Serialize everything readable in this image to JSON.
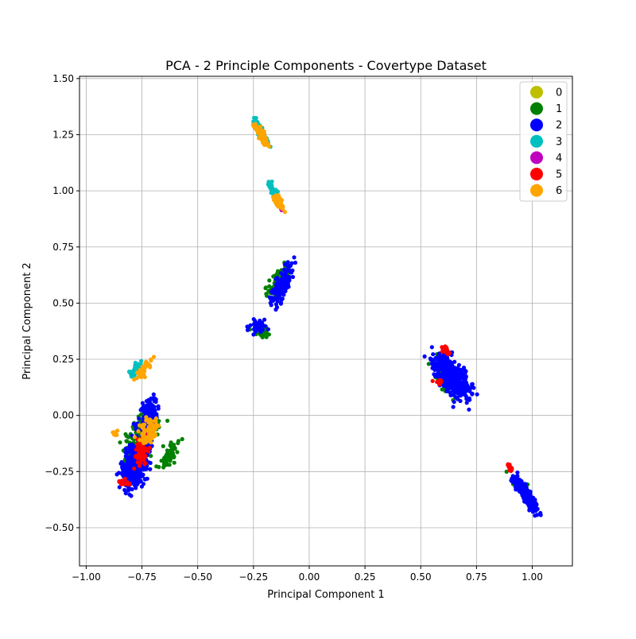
{
  "chart_data": {
    "type": "scatter",
    "title": "PCA - 2 Principle Components - Covertype Dataset",
    "xlabel": "Principal Component 1",
    "ylabel": "Principal Component 2",
    "xlim": [
      -1.03,
      1.18
    ],
    "ylim": [
      -0.67,
      1.51
    ],
    "xticks": [
      -1.0,
      -0.75,
      -0.5,
      -0.25,
      0.0,
      0.25,
      0.5,
      0.75,
      1.0
    ],
    "yticks": [
      -0.5,
      -0.25,
      0.0,
      0.25,
      0.5,
      0.75,
      1.0,
      1.25,
      1.5
    ],
    "xtick_labels": [
      "−1.00",
      "−0.75",
      "−0.50",
      "−0.25",
      "0.00",
      "0.25",
      "0.50",
      "0.75",
      "1.00"
    ],
    "ytick_labels": [
      "−0.50",
      "−0.25",
      "0.00",
      "0.25",
      "0.50",
      "0.75",
      "1.00",
      "1.25",
      "1.50"
    ],
    "grid": true,
    "legend_position": "top-right",
    "series": [
      {
        "name": "0",
        "color": "#bfbf00",
        "clusters": []
      },
      {
        "name": "1",
        "color": "#008000",
        "clusters": [
          {
            "center": [
              -0.75,
              -0.1
            ],
            "spread": [
              0.09,
              0.17
            ],
            "angle_deg": 70,
            "count": 200
          },
          {
            "center": [
              -0.63,
              -0.18
            ],
            "spread": [
              0.04,
              0.1
            ],
            "angle_deg": 60,
            "count": 60
          },
          {
            "center": [
              -0.14,
              0.6
            ],
            "spread": [
              0.05,
              0.13
            ],
            "angle_deg": 65,
            "count": 90
          },
          {
            "center": [
              -0.22,
              0.38
            ],
            "spread": [
              0.05,
              0.05
            ],
            "angle_deg": 0,
            "count": 30
          },
          {
            "center": [
              0.6,
              0.17
            ],
            "spread": [
              0.05,
              0.13
            ],
            "angle_deg": -60,
            "count": 80
          },
          {
            "center": [
              0.96,
              -0.33
            ],
            "spread": [
              0.03,
              0.12
            ],
            "angle_deg": -55,
            "count": 25
          }
        ]
      },
      {
        "name": "2",
        "color": "#0000ff",
        "clusters": [
          {
            "center": [
              -0.78,
              -0.22
            ],
            "spread": [
              0.07,
              0.15
            ],
            "angle_deg": 75,
            "count": 450
          },
          {
            "center": [
              -0.72,
              0.0
            ],
            "spread": [
              0.05,
              0.12
            ],
            "angle_deg": 70,
            "count": 150
          },
          {
            "center": [
              -0.12,
              0.58
            ],
            "spread": [
              0.05,
              0.14
            ],
            "angle_deg": 65,
            "count": 120
          },
          {
            "center": [
              -0.23,
              0.4
            ],
            "spread": [
              0.04,
              0.06
            ],
            "angle_deg": 0,
            "count": 40
          },
          {
            "center": [
              0.64,
              0.17
            ],
            "spread": [
              0.07,
              0.16
            ],
            "angle_deg": -55,
            "count": 500
          },
          {
            "center": [
              0.97,
              -0.35
            ],
            "spread": [
              0.03,
              0.14
            ],
            "angle_deg": -55,
            "count": 300
          }
        ]
      },
      {
        "name": "3",
        "color": "#00bfbf",
        "clusters": [
          {
            "center": [
              -0.22,
              1.27
            ],
            "spread": [
              0.02,
              0.09
            ],
            "angle_deg": -60,
            "count": 60
          },
          {
            "center": [
              -0.16,
              1.0
            ],
            "spread": [
              0.02,
              0.06
            ],
            "angle_deg": -60,
            "count": 40
          },
          {
            "center": [
              -0.78,
              0.2
            ],
            "spread": [
              0.03,
              0.07
            ],
            "angle_deg": 60,
            "count": 25
          }
        ]
      },
      {
        "name": "4",
        "color": "#bf00bf",
        "clusters": [
          {
            "center": [
              -0.13,
              0.93
            ],
            "spread": [
              0.01,
              0.03
            ],
            "angle_deg": -60,
            "count": 6
          },
          {
            "center": [
              -0.73,
              -0.08
            ],
            "spread": [
              0.02,
              0.03
            ],
            "angle_deg": 0,
            "count": 4
          }
        ]
      },
      {
        "name": "5",
        "color": "#ff0000",
        "clusters": [
          {
            "center": [
              -0.75,
              -0.15
            ],
            "spread": [
              0.04,
              0.1
            ],
            "angle_deg": 75,
            "count": 80
          },
          {
            "center": [
              -0.83,
              -0.3
            ],
            "spread": [
              0.02,
              0.05
            ],
            "angle_deg": 0,
            "count": 15
          },
          {
            "center": [
              0.61,
              0.29
            ],
            "spread": [
              0.015,
              0.03
            ],
            "angle_deg": -60,
            "count": 40
          },
          {
            "center": [
              0.58,
              0.15
            ],
            "spread": [
              0.02,
              0.04
            ],
            "angle_deg": 0,
            "count": 10
          },
          {
            "center": [
              0.9,
              -0.23
            ],
            "spread": [
              0.01,
              0.025
            ],
            "angle_deg": -60,
            "count": 20
          }
        ]
      },
      {
        "name": "6",
        "color": "#ffa500",
        "clusters": [
          {
            "center": [
              -0.21,
              1.24
            ],
            "spread": [
              0.02,
              0.08
            ],
            "angle_deg": -60,
            "count": 70
          },
          {
            "center": [
              -0.14,
              0.95
            ],
            "spread": [
              0.02,
              0.06
            ],
            "angle_deg": -60,
            "count": 60
          },
          {
            "center": [
              -0.74,
              0.2
            ],
            "spread": [
              0.025,
              0.08
            ],
            "angle_deg": 60,
            "count": 40
          },
          {
            "center": [
              -0.72,
              -0.07
            ],
            "spread": [
              0.05,
              0.09
            ],
            "angle_deg": 70,
            "count": 80
          },
          {
            "center": [
              -0.87,
              -0.08
            ],
            "spread": [
              0.015,
              0.02
            ],
            "angle_deg": 0,
            "count": 10
          }
        ]
      }
    ]
  }
}
